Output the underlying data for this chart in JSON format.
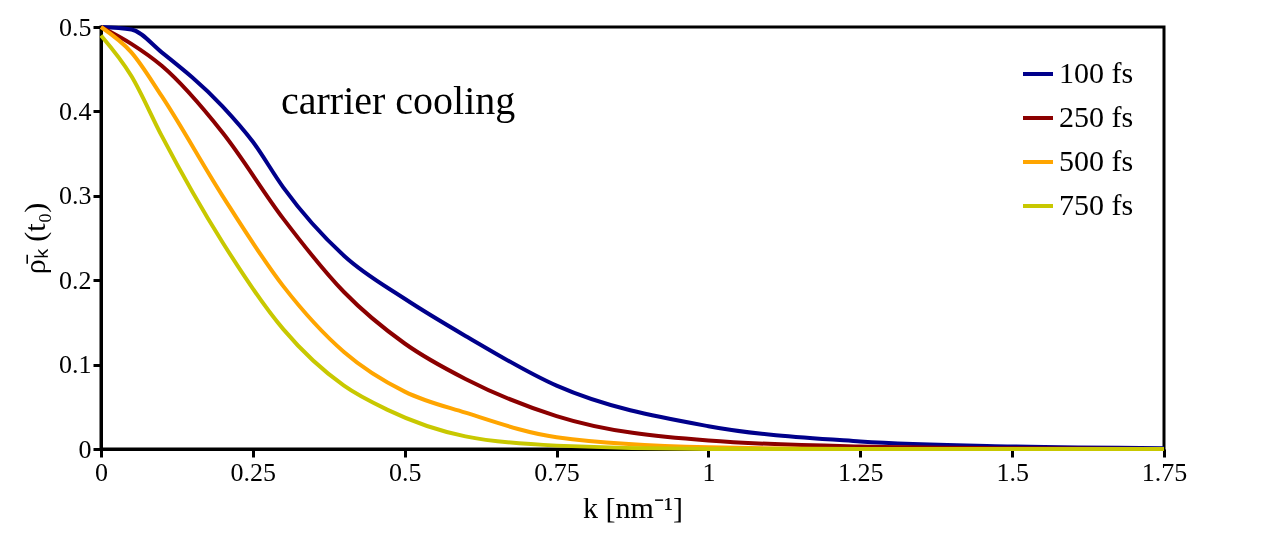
{
  "chart_data": {
    "type": "line",
    "xlabel": "k [nm⁻¹]",
    "ylabel": "ρ̄ₖ (t₀)",
    "annotations": [
      "carrier cooling"
    ],
    "xlim": [
      0,
      1.75
    ],
    "ylim": [
      0,
      0.5
    ],
    "xticks": [
      0,
      0.25,
      0.5,
      0.75,
      1,
      1.25,
      1.5,
      1.75
    ],
    "yticks": [
      0,
      0.1,
      0.2,
      0.3,
      0.4,
      0.5
    ],
    "grid": false,
    "legend": "top right",
    "marker": "none",
    "line_style": "solid",
    "series": [
      {
        "name": "100 fs",
        "color": "#00008b",
        "x": [
          0,
          0.05,
          0.1,
          0.2,
          0.25,
          0.3,
          0.4,
          0.5,
          0.6,
          0.75,
          1,
          1.25,
          1.5,
          1.75
        ],
        "values": [
          0.5,
          0.497,
          0.47,
          0.406,
          0.364,
          0.31,
          0.229,
          0.178,
          0.134,
          0.075,
          0.027,
          0.009,
          0.003,
          0.001
        ]
      },
      {
        "name": "250 fs",
        "color": "#8b0000",
        "x": [
          0,
          0.05,
          0.1,
          0.2,
          0.3,
          0.4,
          0.5,
          0.6,
          0.75,
          1,
          1.25,
          1.5,
          1.75
        ],
        "values": [
          0.5,
          0.48,
          0.454,
          0.375,
          0.273,
          0.186,
          0.125,
          0.083,
          0.039,
          0.01,
          0.003,
          0.001,
          0
        ]
      },
      {
        "name": "500 fs",
        "color": "#ffa500",
        "x": [
          0,
          0.05,
          0.1,
          0.2,
          0.3,
          0.4,
          0.5,
          0.6,
          0.75,
          1,
          1.25,
          1.5,
          1.75
        ],
        "values": [
          0.5,
          0.47,
          0.418,
          0.3,
          0.193,
          0.115,
          0.068,
          0.043,
          0.014,
          0.002,
          0,
          0,
          0
        ]
      },
      {
        "name": "750 fs",
        "color": "#c8c800",
        "x": [
          0,
          0.05,
          0.1,
          0.2,
          0.3,
          0.4,
          0.47,
          0.6,
          0.75,
          1,
          1.25,
          1.5,
          1.75
        ],
        "values": [
          0.49,
          0.442,
          0.371,
          0.245,
          0.142,
          0.075,
          0.047,
          0.015,
          0.004,
          0,
          0,
          0,
          0
        ]
      }
    ]
  }
}
